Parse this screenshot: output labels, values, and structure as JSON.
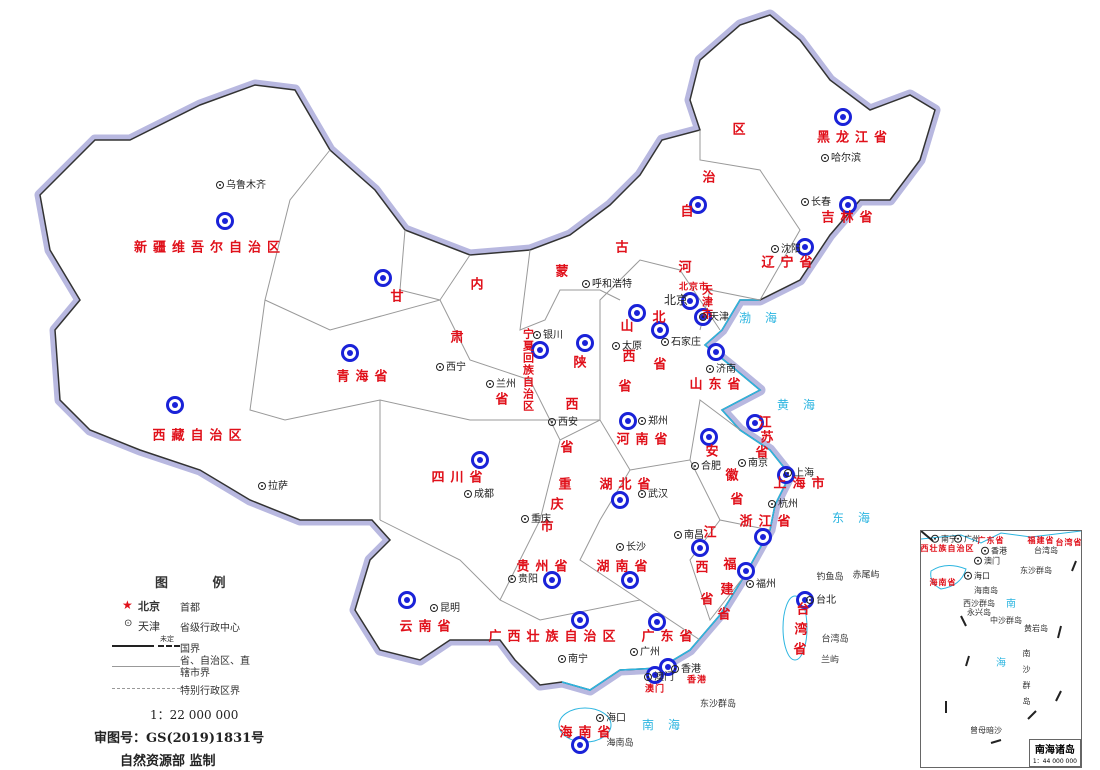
{
  "map": {
    "colors": {
      "province_label": "#e0101a",
      "marker": "#1a22d8",
      "sea_label": "#2bb5e0",
      "coastline": "#2bb5e0",
      "border_glow": "#b8b8e0",
      "province_border": "#999999"
    },
    "provinces": [
      "新疆维吾尔自治区",
      "西藏自治区",
      "青海省",
      "甘",
      "肃",
      "省",
      "内",
      "蒙",
      "古",
      "自",
      "治",
      "区",
      "黑龙江省",
      "吉林省",
      "辽宁省",
      "河",
      "北",
      "省",
      "北京市",
      "天津市",
      "山",
      "西",
      "省",
      "陕",
      "西",
      "省",
      "宁夏回族自治区",
      "山东省",
      "河南省",
      "江",
      "苏",
      "省",
      "安",
      "徽",
      "省",
      "上海市",
      "浙江省",
      "湖北省",
      "重",
      "庆",
      "市",
      "四川省",
      "贵州省",
      "湖南省",
      "江",
      "西",
      "省",
      "福",
      "建",
      "省",
      "云南省",
      "广西壮族自治区",
      "广东省",
      "台",
      "湾",
      "省",
      "香港",
      "澳门",
      "海南省"
    ],
    "cities": [
      "乌鲁木齐",
      "拉萨",
      "西宁",
      "兰州",
      "银川",
      "呼和浩特",
      "太原",
      "石家庄",
      "北京",
      "天津",
      "济南",
      "郑州",
      "西安",
      "成都",
      "重庆",
      "武汉",
      "合肥",
      "南京",
      "上海",
      "杭州",
      "长沙",
      "南昌",
      "福州",
      "贵阳",
      "昆明",
      "南宁",
      "广州",
      "香港",
      "澳门",
      "海口",
      "台北",
      "哈尔滨",
      "长春",
      "沈阳"
    ],
    "islands": [
      "钓鱼岛",
      "赤尾屿",
      "台湾岛",
      "兰屿",
      "东沙群岛",
      "海南岛"
    ],
    "seas": [
      "渤海",
      "黄海",
      "东海",
      "南海"
    ]
  },
  "legend": {
    "title": "图 例",
    "capital_name": "北京",
    "capital_desc": "首都",
    "provincial_name": "天津",
    "provincial_desc": "省级行政中心",
    "undetermined": "未定",
    "national_border": "国界",
    "provincial_border": "省、自治区、直辖市界",
    "sar_border": "特别行政区界",
    "scale": "1：22 000 000"
  },
  "approval_number": "审图号：GS(2019)1831号",
  "supervisor": "自然资源部 监制",
  "inset": {
    "title": "南海诸岛",
    "scale": "1：44 000 000",
    "labels": [
      "南宁",
      "广州",
      "广东省",
      "福建省",
      "台湾省",
      "广西壮族自治区",
      "香港",
      "澳门",
      "台湾岛",
      "海口",
      "海南省",
      "东沙群岛",
      "海南岛",
      "西沙群岛",
      "永兴岛",
      "中沙群岛",
      "黄岩岛",
      "南",
      "海",
      "南沙群岛",
      "曾母暗沙"
    ]
  }
}
